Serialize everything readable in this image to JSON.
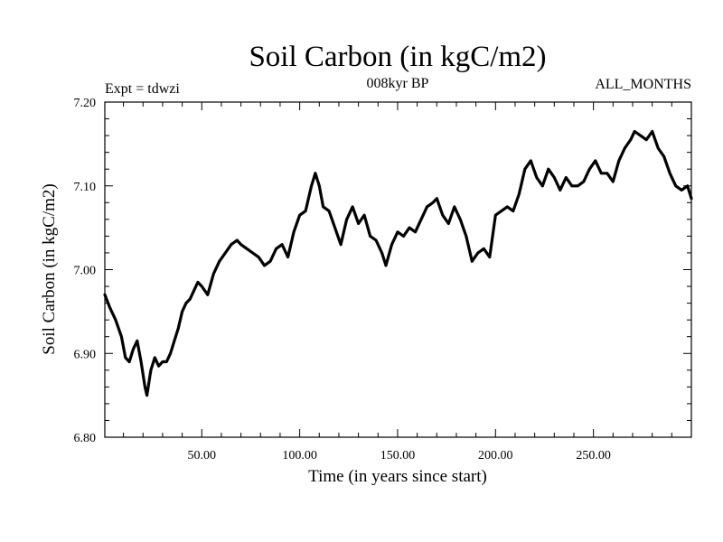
{
  "chart_data": {
    "type": "line",
    "title": "Soil Carbon (in kgC/m2)",
    "subtitle": "008kyr BP",
    "experiment_label": "Expt = tdwzi",
    "period_label": "ALL_MONTHS",
    "xlabel": "Time (in years since start)",
    "ylabel": "Soil Carbon (in kgC/m2)",
    "xlim": [
      0.5,
      300
    ],
    "ylim": [
      6.8,
      7.2
    ],
    "x_ticks": [
      50,
      100,
      150,
      200,
      250
    ],
    "x_tick_labels": [
      "50.00",
      "100.00",
      "150.00",
      "200.00",
      "250.00"
    ],
    "y_ticks": [
      6.8,
      6.9,
      7.0,
      7.1,
      7.2
    ],
    "y_tick_labels": [
      "6.80",
      "6.90",
      "7.00",
      "7.10",
      "7.20"
    ],
    "series": [
      {
        "name": "Soil Carbon",
        "color": "#000000",
        "x": [
          0.5,
          3,
          6,
          9,
          11,
          13,
          15,
          17,
          19,
          21,
          22,
          24,
          26,
          28,
          30,
          32,
          34,
          36,
          38,
          40,
          42,
          44,
          46,
          48,
          50,
          53,
          56,
          59,
          62,
          65,
          68,
          70,
          73,
          76,
          79,
          82,
          85,
          88,
          91,
          94,
          97,
          100,
          103,
          106,
          108,
          110,
          112,
          115,
          118,
          121,
          124,
          127,
          130,
          133,
          136,
          139,
          142,
          144,
          147,
          150,
          153,
          156,
          159,
          162,
          165,
          168,
          170,
          173,
          176,
          179,
          182,
          185,
          188,
          191,
          194,
          197,
          200,
          203,
          206,
          209,
          212,
          215,
          218,
          221,
          224,
          227,
          230,
          233,
          236,
          239,
          242,
          245,
          248,
          251,
          254,
          257,
          260,
          263,
          266,
          269,
          271,
          274,
          277,
          280,
          283,
          286,
          289,
          292,
          295,
          298,
          300
        ],
        "values": [
          6.97,
          6.955,
          6.94,
          6.92,
          6.895,
          6.89,
          6.905,
          6.915,
          6.89,
          6.86,
          6.85,
          6.88,
          6.895,
          6.885,
          6.89,
          6.89,
          6.9,
          6.915,
          6.93,
          6.95,
          6.96,
          6.965,
          6.975,
          6.985,
          6.98,
          6.97,
          6.995,
          7.01,
          7.02,
          7.03,
          7.035,
          7.03,
          7.025,
          7.02,
          7.015,
          7.005,
          7.01,
          7.025,
          7.03,
          7.015,
          7.045,
          7.065,
          7.07,
          7.1,
          7.115,
          7.1,
          7.075,
          7.07,
          7.05,
          7.03,
          7.06,
          7.075,
          7.055,
          7.065,
          7.04,
          7.035,
          7.02,
          7.005,
          7.03,
          7.045,
          7.04,
          7.05,
          7.045,
          7.06,
          7.075,
          7.08,
          7.085,
          7.065,
          7.055,
          7.075,
          7.06,
          7.04,
          7.01,
          7.02,
          7.025,
          7.015,
          7.065,
          7.07,
          7.075,
          7.07,
          7.09,
          7.12,
          7.13,
          7.11,
          7.1,
          7.12,
          7.11,
          7.095,
          7.11,
          7.1,
          7.1,
          7.105,
          7.12,
          7.13,
          7.115,
          7.115,
          7.105,
          7.13,
          7.145,
          7.155,
          7.165,
          7.16,
          7.155,
          7.165,
          7.145,
          7.135,
          7.115,
          7.1,
          7.095,
          7.1,
          7.085
        ]
      }
    ]
  }
}
